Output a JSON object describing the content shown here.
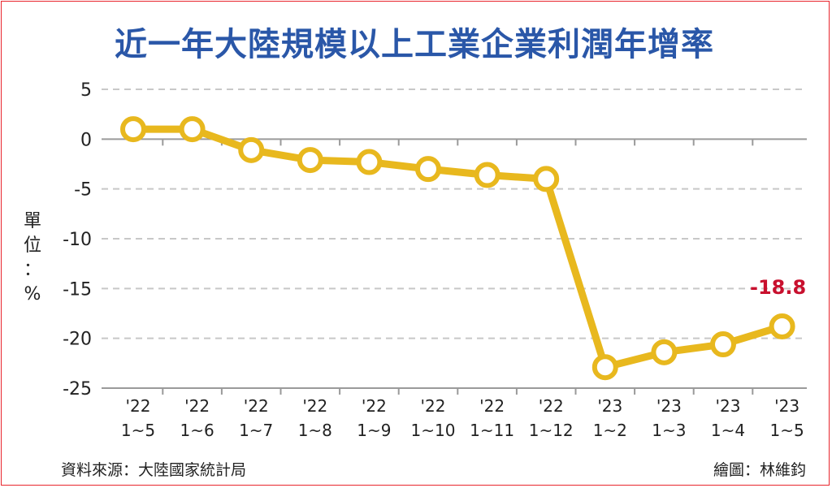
{
  "title": "近一年大陸規模以上工業企業利潤年增率",
  "unit_label": [
    "單",
    "位",
    "：",
    "%"
  ],
  "source": "資料來源：大陸國家統計局",
  "credit": "繪圖：林維鈞",
  "colors": {
    "title": "#2a57a8",
    "line": "#e8b81e",
    "label": "#c8102e",
    "border": "#e8262d",
    "grid": "#c8c8c8"
  },
  "chart_data": {
    "type": "line",
    "title": "近一年大陸規模以上工業企業利潤年增率",
    "ylabel": "單位：%",
    "ylim": [
      -25,
      5
    ],
    "yticks": [
      5,
      0,
      -5,
      -10,
      -15,
      -20,
      -25
    ],
    "grid": true,
    "categories": [
      [
        "'22",
        "1~5"
      ],
      [
        "'22",
        "1~6"
      ],
      [
        "'22",
        "1~7"
      ],
      [
        "'22",
        "1~8"
      ],
      [
        "'22",
        "1~9"
      ],
      [
        "'22",
        "1~10"
      ],
      [
        "'22",
        "1~11"
      ],
      [
        "'22",
        "1~12"
      ],
      [
        "'23",
        "1~2"
      ],
      [
        "'23",
        "1~3"
      ],
      [
        "'23",
        "1~4"
      ],
      [
        "'23",
        "1~5"
      ]
    ],
    "series": [
      {
        "values": [
          1.0,
          1.0,
          -1.1,
          -2.1,
          -2.3,
          -3.0,
          -3.6,
          -4.0,
          -22.9,
          -21.4,
          -20.6,
          -18.8
        ]
      }
    ],
    "annotations": [
      {
        "index": 11,
        "text": "-18.8"
      }
    ]
  }
}
